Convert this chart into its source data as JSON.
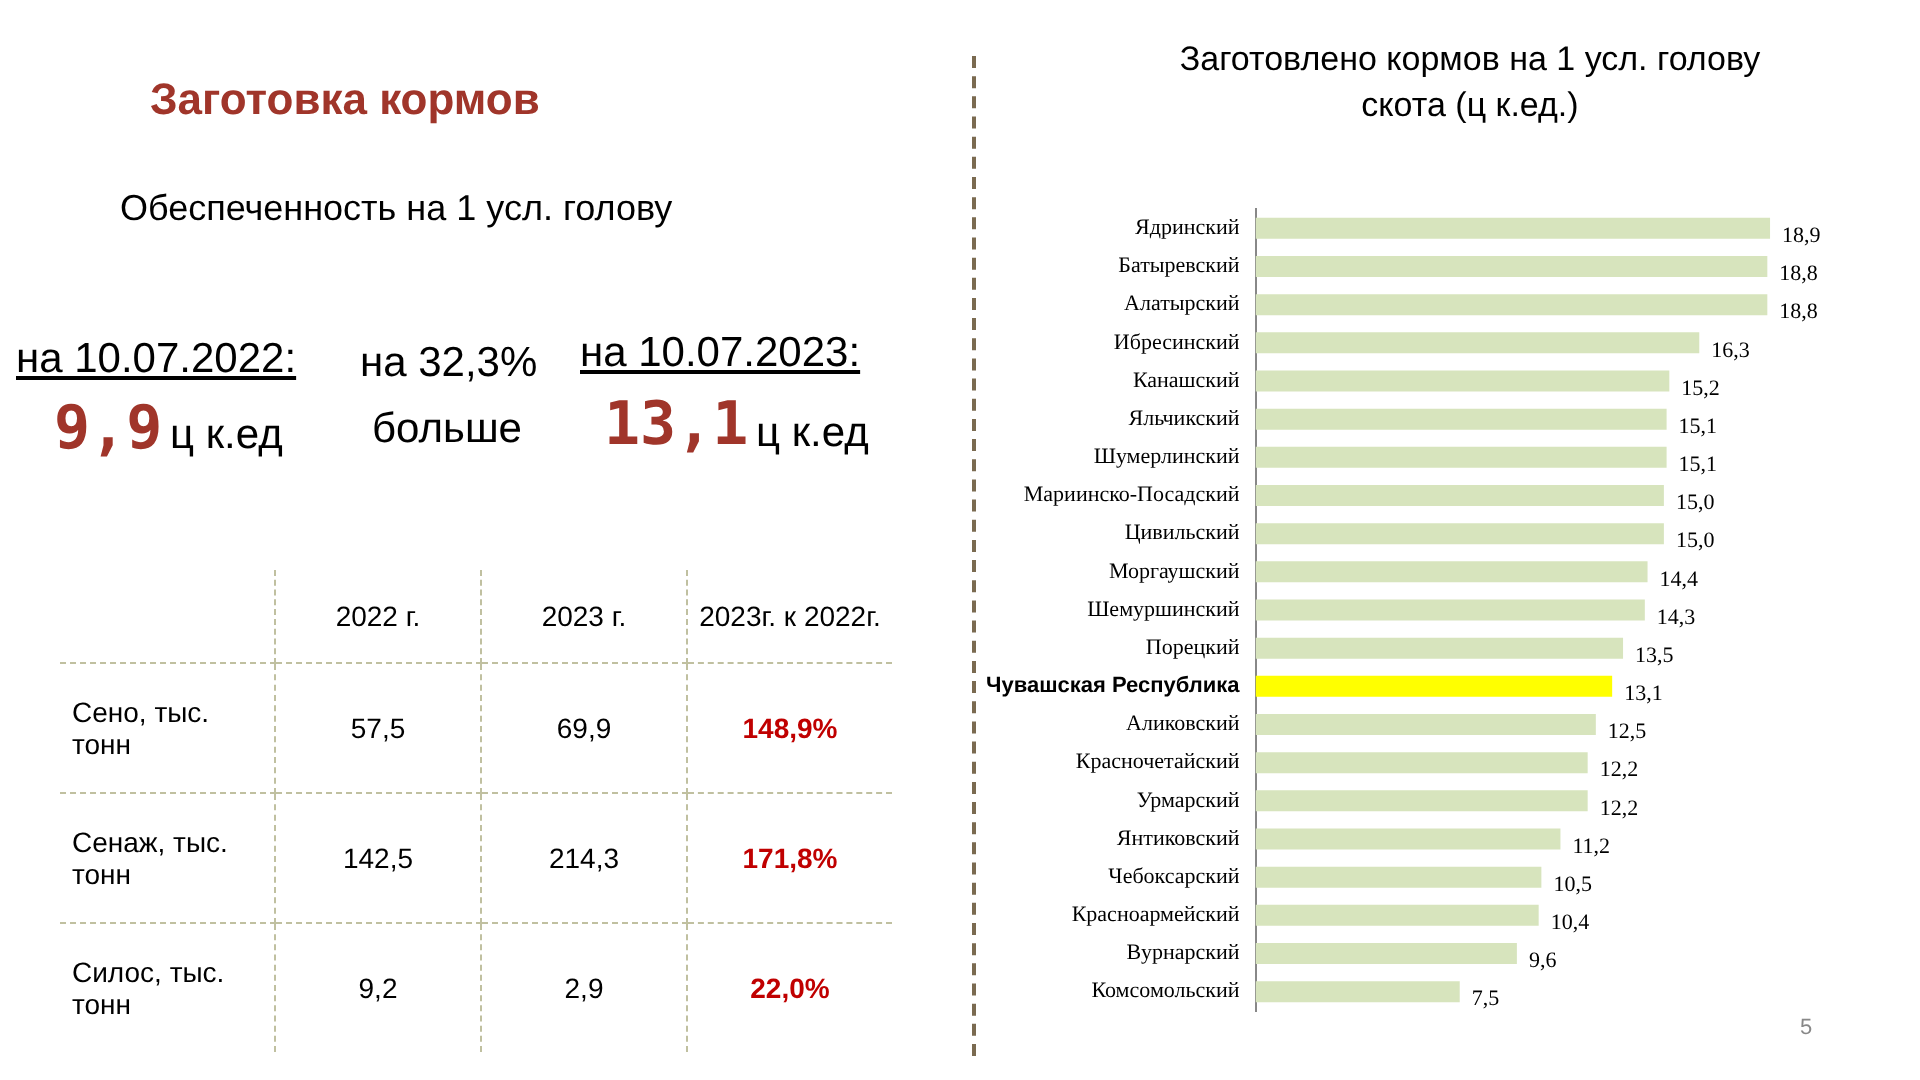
{
  "chart_data": [
    {
      "type": "other",
      "title": "Заготовка кормов",
      "subtitle": "Обеспеченность на 1 усл. голову",
      "annotations": [
        "на 10.07.2022:",
        "9,9",
        "ц к.ед",
        "на 32,3%",
        "больше",
        "на 10.07.2023:",
        "13,1",
        "ц к.ед",
        "2022 г.",
        "2023 г.",
        "2023г. к 2022г.",
        "Сено, тыс. тонн",
        "57,5",
        "69,9",
        "148,9%",
        "Сенаж, тыс. тонн",
        "142,5",
        "214,3",
        "171,8%",
        "Силос, тыс. тонн",
        "9,2",
        "2,9",
        "22,0%"
      ]
    },
    {
      "type": "bar",
      "orientation": "horizontal",
      "title": "Заготовлено кормов на 1 усл. голову скота (ц к.ед.)",
      "categories": [
        "Ядринский",
        "Батыревский",
        "Алатырский",
        "Ибресинский",
        "Канашский",
        "Яльчикский",
        "Шумерлинский",
        "Мариинско-Посадский",
        "Цивильский",
        "Моргаушский",
        "Шемуршинский",
        "Порецкий",
        "Чувашская Республика",
        "Аликовский",
        "Красночетайский",
        "Урмарский",
        "Янтиковский",
        "Чебоксарский",
        "Красноармейский",
        "Вурнарский",
        "Комсомольский"
      ],
      "values": [
        18.9,
        18.8,
        18.8,
        16.3,
        15.2,
        15.1,
        15.1,
        15.0,
        15.0,
        14.4,
        14.3,
        13.5,
        13.1,
        12.5,
        12.2,
        12.2,
        11.2,
        10.5,
        10.4,
        9.6,
        7.5
      ],
      "colors": [
        "#d7e4bd",
        "#d7e4bd",
        "#d7e4bd",
        "#d7e4bd",
        "#d7e4bd",
        "#d7e4bd",
        "#d7e4bd",
        "#d7e4bd",
        "#d7e4bd",
        "#d7e4bd",
        "#d7e4bd",
        "#d7e4bd",
        "#ffff00",
        "#d7e4bd",
        "#d7e4bd",
        "#d7e4bd",
        "#d7e4bd",
        "#d7e4bd",
        "#d7e4bd",
        "#d7e4bd",
        "#d7e4bd"
      ],
      "value_labels": [
        "18,9",
        "18,8",
        "18,8",
        "16,3",
        "15,2",
        "15,1",
        "15,1",
        "15,0",
        "15,0",
        "14,4",
        "14,3",
        "13,5",
        "13,1",
        "12,5",
        "12,2",
        "12,2",
        "11,2",
        "10,5",
        "10,4",
        "9,6",
        "7,5"
      ],
      "grid": false,
      "legend": false,
      "annotations": [
        "5"
      ]
    }
  ]
}
